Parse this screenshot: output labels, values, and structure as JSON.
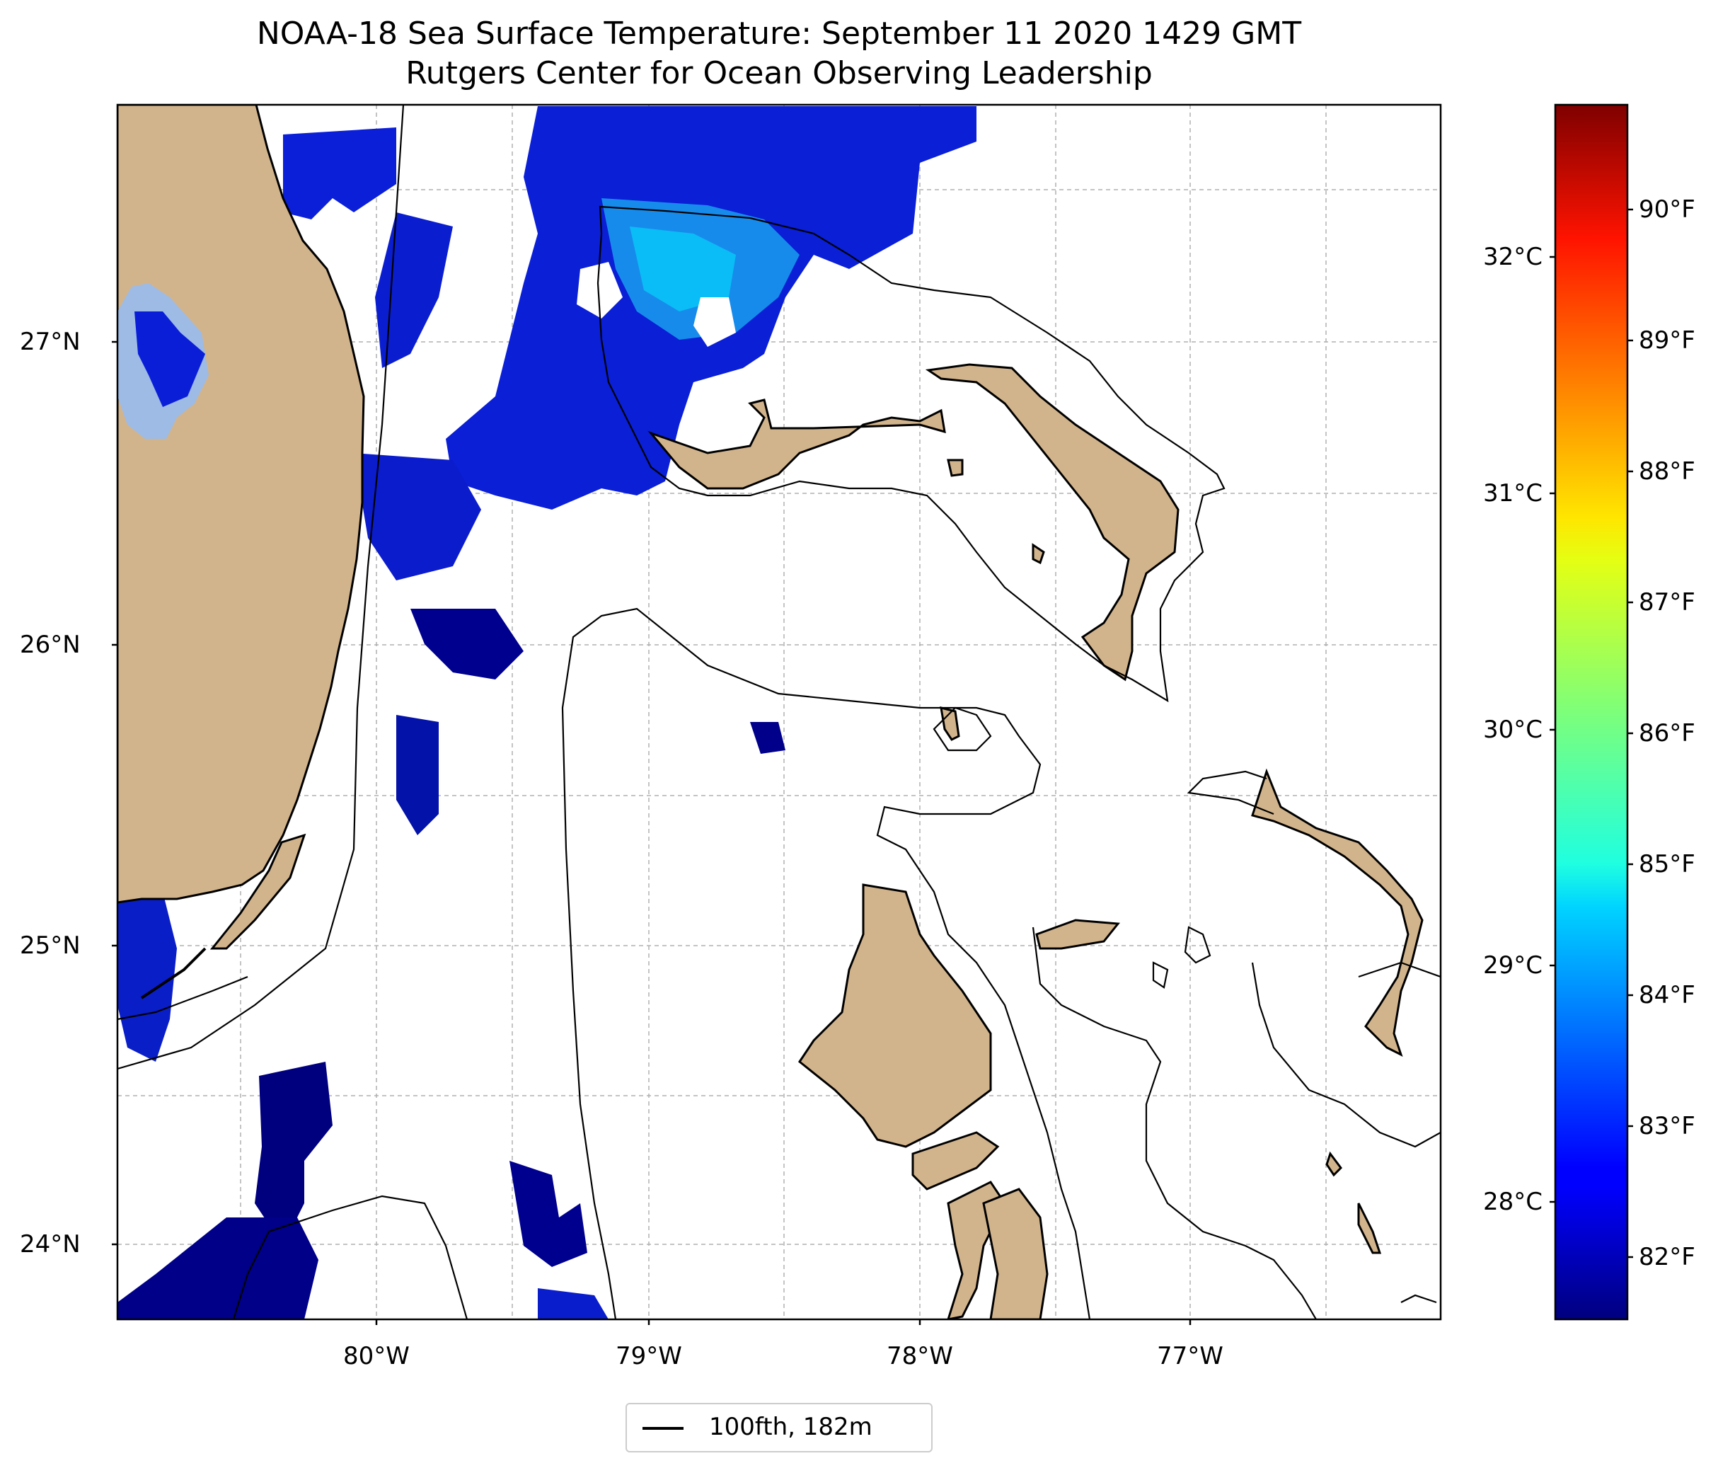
{
  "title": "NOAA-18 Sea Surface Temperature: September 11 2020 1429 GMT",
  "subtitle": "Rutgers Center for Ocean Observing Leadership",
  "map": {
    "lon_range": [
      -80.95,
      -76.1
    ],
    "lat_range": [
      23.75,
      27.8
    ],
    "lat_labels": [
      "27°N",
      "26°N",
      "25°N",
      "24°N"
    ],
    "lon_labels": [
      "80°W",
      "79°W",
      "78°W",
      "77°W"
    ],
    "land_color": "#d2b48c",
    "lake_color": "#9dbbe5",
    "grid": true
  },
  "colorbar": {
    "colormap": "jet",
    "range_c": [
      27.5,
      32.65
    ],
    "celsius_labels": [
      "32°C",
      "31°C",
      "30°C",
      "29°C",
      "28°C"
    ],
    "fahrenheit_labels": [
      "90°F",
      "89°F",
      "88°F",
      "87°F",
      "86°F",
      "85°F",
      "84°F",
      "83°F",
      "82°F"
    ]
  },
  "legend": {
    "label": "100fth, 182m"
  }
}
